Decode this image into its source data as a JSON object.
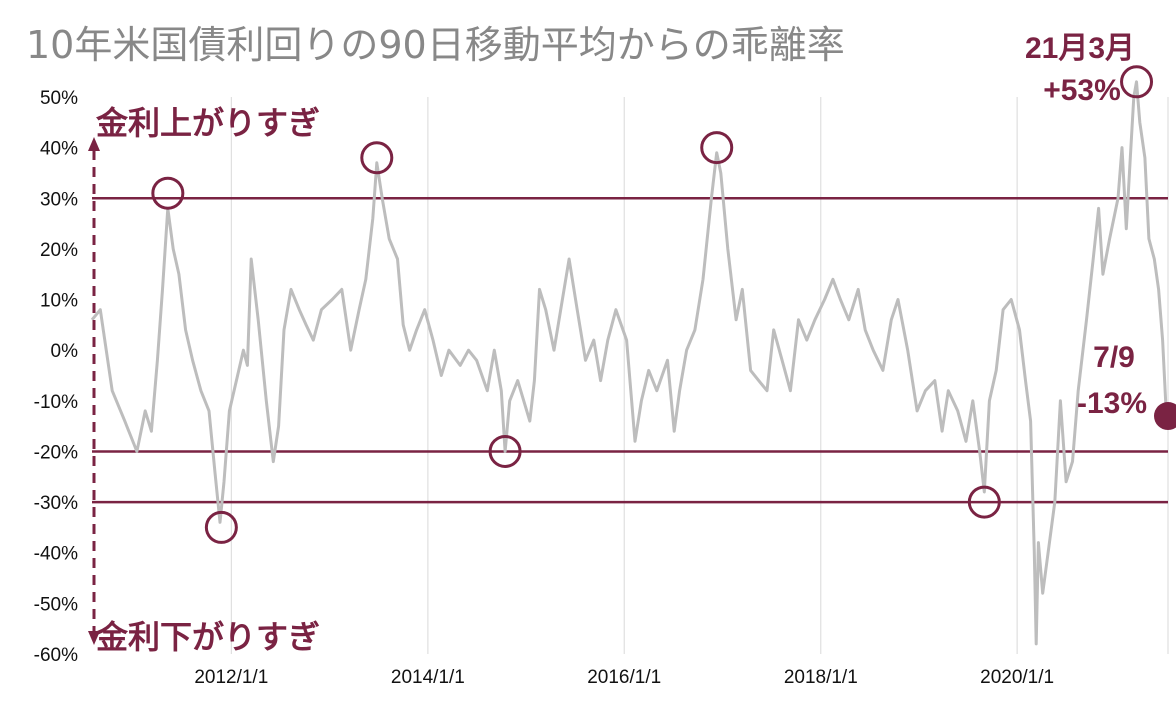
{
  "chart_data": {
    "type": "line",
    "title": "10年米国債利回りの90日移動平均からの乖離率",
    "xlabel": "",
    "ylabel": "",
    "x_range": [
      "2010-08-01",
      "2021-07-15"
    ],
    "ylim": [
      -60,
      50
    ],
    "y_ticks": [
      50,
      40,
      30,
      20,
      10,
      0,
      -10,
      -20,
      -30,
      -40,
      -50,
      -60
    ],
    "y_tick_labels": [
      "50%",
      "40%",
      "30%",
      "20%",
      "10%",
      "0%",
      "-10%",
      "-20%",
      "-30%",
      "-40%",
      "-50%",
      "-60%"
    ],
    "x_tick_labels": [
      "2012/1/1",
      "2014/1/1",
      "2016/1/1",
      "2018/1/1",
      "2020/1/1"
    ],
    "x_tick_dates": [
      "2012-01-01",
      "2014-01-01",
      "2016-01-01",
      "2018-01-01",
      "2020-01-01"
    ],
    "grid": true,
    "series_color": "#bdbdbd",
    "accent_color": "#7a2343",
    "reference_lines": [
      30,
      -20,
      -30
    ],
    "series": [
      {
        "name": "",
        "points": [
          [
            "2010-08-01",
            6
          ],
          [
            "2010-09-01",
            8
          ],
          [
            "2010-10-15",
            -8
          ],
          [
            "2010-12-01",
            -14
          ],
          [
            "2011-01-15",
            -20
          ],
          [
            "2011-02-15",
            -12
          ],
          [
            "2011-03-10",
            -16
          ],
          [
            "2011-04-01",
            -2
          ],
          [
            "2011-04-20",
            12
          ],
          [
            "2011-05-10",
            28
          ],
          [
            "2011-05-30",
            20
          ],
          [
            "2011-06-20",
            15
          ],
          [
            "2011-07-15",
            4
          ],
          [
            "2011-08-10",
            -2
          ],
          [
            "2011-09-10",
            -8
          ],
          [
            "2011-10-10",
            -12
          ],
          [
            "2011-11-01",
            -24
          ],
          [
            "2011-11-20",
            -34
          ],
          [
            "2011-12-05",
            -26
          ],
          [
            "2011-12-25",
            -12
          ],
          [
            "2012-01-20",
            -6
          ],
          [
            "2012-02-15",
            0
          ],
          [
            "2012-03-01",
            -3
          ],
          [
            "2012-03-15",
            18
          ],
          [
            "2012-04-10",
            6
          ],
          [
            "2012-05-10",
            -10
          ],
          [
            "2012-06-05",
            -22
          ],
          [
            "2012-06-25",
            -15
          ],
          [
            "2012-07-15",
            4
          ],
          [
            "2012-08-10",
            12
          ],
          [
            "2012-09-10",
            8
          ],
          [
            "2012-10-05",
            5
          ],
          [
            "2012-11-01",
            2
          ],
          [
            "2012-12-01",
            8
          ],
          [
            "2013-01-10",
            10
          ],
          [
            "2013-02-15",
            12
          ],
          [
            "2013-03-20",
            0
          ],
          [
            "2013-04-20",
            8
          ],
          [
            "2013-05-15",
            14
          ],
          [
            "2013-06-10",
            26
          ],
          [
            "2013-06-25",
            37
          ],
          [
            "2013-07-15",
            30
          ],
          [
            "2013-08-10",
            22
          ],
          [
            "2013-09-10",
            18
          ],
          [
            "2013-10-01",
            5
          ],
          [
            "2013-10-25",
            0
          ],
          [
            "2013-11-20",
            4
          ],
          [
            "2013-12-20",
            8
          ],
          [
            "2014-01-20",
            2
          ],
          [
            "2014-02-20",
            -5
          ],
          [
            "2014-03-20",
            0
          ],
          [
            "2014-05-01",
            -3
          ],
          [
            "2014-06-01",
            0
          ],
          [
            "2014-07-01",
            -2
          ],
          [
            "2014-08-10",
            -8
          ],
          [
            "2014-09-05",
            0
          ],
          [
            "2014-10-01",
            -8
          ],
          [
            "2014-10-15",
            -20
          ],
          [
            "2014-11-01",
            -10
          ],
          [
            "2014-12-01",
            -6
          ],
          [
            "2015-01-15",
            -14
          ],
          [
            "2015-02-01",
            -6
          ],
          [
            "2015-02-20",
            12
          ],
          [
            "2015-03-15",
            8
          ],
          [
            "2015-04-15",
            0
          ],
          [
            "2015-05-10",
            8
          ],
          [
            "2015-06-10",
            18
          ],
          [
            "2015-07-10",
            8
          ],
          [
            "2015-08-10",
            -2
          ],
          [
            "2015-09-10",
            2
          ],
          [
            "2015-10-05",
            -6
          ],
          [
            "2015-11-01",
            2
          ],
          [
            "2015-12-01",
            8
          ],
          [
            "2016-01-10",
            2
          ],
          [
            "2016-02-10",
            -18
          ],
          [
            "2016-03-05",
            -10
          ],
          [
            "2016-04-01",
            -4
          ],
          [
            "2016-05-01",
            -8
          ],
          [
            "2016-06-10",
            -2
          ],
          [
            "2016-07-05",
            -16
          ],
          [
            "2016-07-25",
            -8
          ],
          [
            "2016-08-20",
            0
          ],
          [
            "2016-09-20",
            4
          ],
          [
            "2016-10-20",
            14
          ],
          [
            "2016-11-20",
            30
          ],
          [
            "2016-12-10",
            39
          ],
          [
            "2016-12-25",
            35
          ],
          [
            "2017-01-20",
            20
          ],
          [
            "2017-02-20",
            6
          ],
          [
            "2017-03-15",
            12
          ],
          [
            "2017-04-15",
            -4
          ],
          [
            "2017-05-15",
            -6
          ],
          [
            "2017-06-15",
            -8
          ],
          [
            "2017-07-10",
            4
          ],
          [
            "2017-08-10",
            -2
          ],
          [
            "2017-09-10",
            -8
          ],
          [
            "2017-10-10",
            6
          ],
          [
            "2017-11-10",
            2
          ],
          [
            "2017-12-10",
            6
          ],
          [
            "2018-01-15",
            10
          ],
          [
            "2018-02-15",
            14
          ],
          [
            "2018-03-15",
            10
          ],
          [
            "2018-04-15",
            6
          ],
          [
            "2018-05-20",
            12
          ],
          [
            "2018-06-15",
            4
          ],
          [
            "2018-07-15",
            0
          ],
          [
            "2018-08-20",
            -4
          ],
          [
            "2018-09-20",
            6
          ],
          [
            "2018-10-15",
            10
          ],
          [
            "2018-11-20",
            0
          ],
          [
            "2018-12-25",
            -12
          ],
          [
            "2019-01-25",
            -8
          ],
          [
            "2019-03-01",
            -6
          ],
          [
            "2019-03-28",
            -16
          ],
          [
            "2019-04-20",
            -8
          ],
          [
            "2019-05-25",
            -12
          ],
          [
            "2019-06-25",
            -18
          ],
          [
            "2019-07-20",
            -10
          ],
          [
            "2019-08-15",
            -20
          ],
          [
            "2019-09-01",
            -28
          ],
          [
            "2019-09-20",
            -10
          ],
          [
            "2019-10-15",
            -4
          ],
          [
            "2019-11-10",
            8
          ],
          [
            "2019-12-10",
            10
          ],
          [
            "2020-01-10",
            4
          ],
          [
            "2020-02-01",
            -6
          ],
          [
            "2020-02-20",
            -14
          ],
          [
            "2020-03-05",
            -40
          ],
          [
            "2020-03-12",
            -58
          ],
          [
            "2020-03-20",
            -38
          ],
          [
            "2020-04-05",
            -48
          ],
          [
            "2020-04-25",
            -40
          ],
          [
            "2020-05-20",
            -30
          ],
          [
            "2020-06-10",
            -10
          ],
          [
            "2020-07-01",
            -26
          ],
          [
            "2020-07-25",
            -22
          ],
          [
            "2020-08-15",
            -8
          ],
          [
            "2020-09-15",
            6
          ],
          [
            "2020-10-10",
            18
          ],
          [
            "2020-10-30",
            28
          ],
          [
            "2020-11-15",
            15
          ],
          [
            "2020-12-10",
            22
          ],
          [
            "2021-01-10",
            30
          ],
          [
            "2021-01-25",
            40
          ],
          [
            "2021-02-10",
            24
          ],
          [
            "2021-02-25",
            38
          ],
          [
            "2021-03-10",
            50
          ],
          [
            "2021-03-20",
            53
          ],
          [
            "2021-04-01",
            45
          ],
          [
            "2021-04-20",
            38
          ],
          [
            "2021-05-05",
            22
          ],
          [
            "2021-05-25",
            18
          ],
          [
            "2021-06-10",
            12
          ],
          [
            "2021-06-25",
            2
          ],
          [
            "2021-07-09",
            -13
          ]
        ]
      }
    ],
    "highlight_points": [
      {
        "date": "2011-05-10",
        "value": 31,
        "type": "circle"
      },
      {
        "date": "2011-11-25",
        "value": -35,
        "type": "circle"
      },
      {
        "date": "2013-06-25",
        "value": 38,
        "type": "circle"
      },
      {
        "date": "2014-10-15",
        "value": -20,
        "type": "circle"
      },
      {
        "date": "2016-12-10",
        "value": 40,
        "type": "circle"
      },
      {
        "date": "2019-09-01",
        "value": -30,
        "type": "circle"
      },
      {
        "date": "2021-03-20",
        "value": 53,
        "type": "circle"
      },
      {
        "date": "2021-07-15",
        "value": -13,
        "type": "filled"
      }
    ],
    "annotations": {
      "peak_label_line1": "21月3月",
      "peak_label_line2": "+53%",
      "latest_label_line1": "7/9",
      "latest_label_line2": "-13%",
      "upper_arrow_label": "金利上がりすぎ",
      "lower_arrow_label": "金利下がりすぎ"
    }
  }
}
